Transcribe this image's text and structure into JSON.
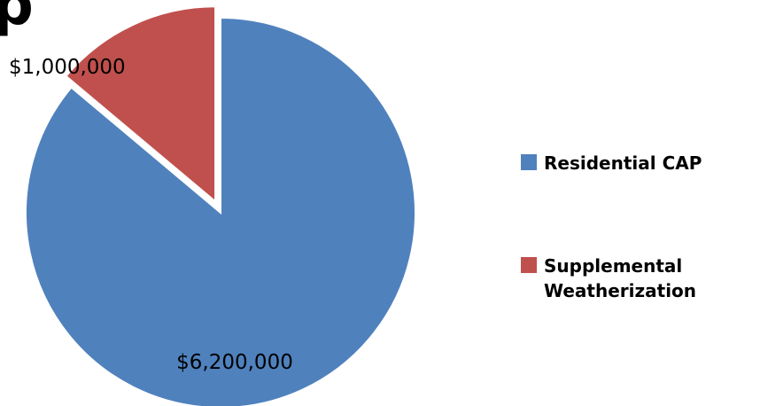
{
  "chart_data": {
    "type": "pie",
    "title": "",
    "slices": [
      {
        "name": "Residential CAP",
        "value": 6200000,
        "label": "$6,200,000",
        "color": "#4F81BD",
        "exploded": false
      },
      {
        "name": "Supplemental Weatherization",
        "value": 1000000,
        "label": "$1,000,000",
        "color": "#C0504D",
        "exploded": true
      }
    ],
    "legend": {
      "placement": "right",
      "entries": [
        "Residential CAP",
        "Supplemental Weatherization"
      ]
    }
  }
}
